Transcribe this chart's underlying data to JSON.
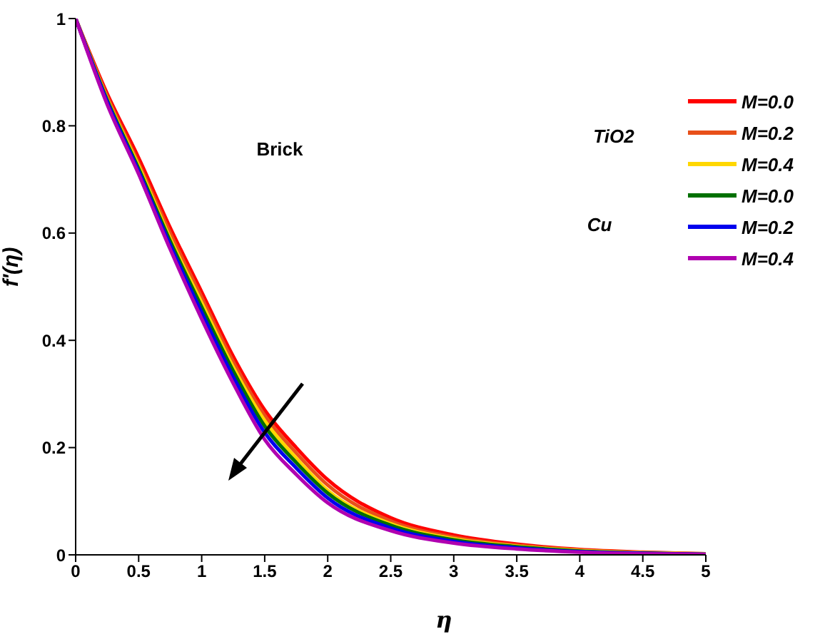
{
  "chart_data": {
    "type": "line",
    "xlabel": "η",
    "ylabel": "f'(η)",
    "annotations": [
      "Brick",
      "TiO2",
      "Cu"
    ],
    "x": [
      0,
      0.25,
      0.5,
      0.75,
      1,
      1.25,
      1.5,
      1.75,
      2,
      2.5,
      3,
      3.5,
      4,
      4.5,
      5
    ],
    "series": [
      {
        "name": "M=0.0",
        "color": "#ff0000",
        "values": [
          1,
          0.86,
          0.74,
          0.61,
          0.49,
          0.37,
          0.27,
          0.2,
          0.14,
          0.069,
          0.037,
          0.02,
          0.01,
          0.005,
          0.002
        ]
      },
      {
        "name": "M=0.2",
        "color": "#e8501a",
        "values": [
          1,
          0.855,
          0.73,
          0.6,
          0.48,
          0.36,
          0.26,
          0.19,
          0.13,
          0.063,
          0.033,
          0.018,
          0.009,
          0.004,
          0.002
        ]
      },
      {
        "name": "M=0.4",
        "color": "#ffd700",
        "values": [
          1,
          0.85,
          0.725,
          0.59,
          0.47,
          0.35,
          0.25,
          0.18,
          0.12,
          0.058,
          0.03,
          0.016,
          0.008,
          0.004,
          0.002
        ]
      },
      {
        "name": "M=0.0",
        "color": "#007000",
        "values": [
          1,
          0.848,
          0.72,
          0.585,
          0.462,
          0.343,
          0.24,
          0.172,
          0.115,
          0.055,
          0.028,
          0.015,
          0.007,
          0.003,
          0.001
        ]
      },
      {
        "name": "M=0.2",
        "color": "#0000ee",
        "values": [
          1,
          0.845,
          0.715,
          0.578,
          0.452,
          0.332,
          0.228,
          0.162,
          0.106,
          0.05,
          0.025,
          0.013,
          0.006,
          0.003,
          0.001
        ]
      },
      {
        "name": "M=0.4",
        "color": "#b000b0",
        "values": [
          1,
          0.84,
          0.71,
          0.57,
          0.44,
          0.32,
          0.215,
          0.15,
          0.097,
          0.045,
          0.022,
          0.011,
          0.005,
          0.002,
          0.001
        ]
      }
    ],
    "xlim": [
      0,
      5
    ],
    "xticks": [
      0,
      0.5,
      1,
      1.5,
      2,
      2.5,
      3,
      3.5,
      4,
      4.5,
      5
    ],
    "ylim": [
      0,
      1
    ],
    "yticks": [
      0,
      0.2,
      0.4,
      0.6,
      0.8,
      1
    ],
    "legend": "top right",
    "line_style": "solid",
    "marker": "none",
    "grid": false
  }
}
